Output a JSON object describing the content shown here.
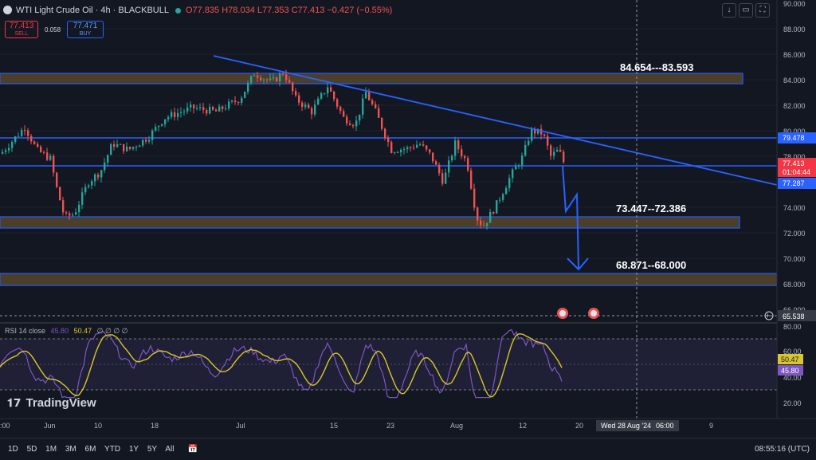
{
  "header": {
    "symbol_title": "WTI Light Crude Oil · 4h · BLACKBULL",
    "open": "O77.835",
    "high": "H78.034",
    "low": "L77.353",
    "close": "C77.413",
    "change": "−0.427 (−0.55%)",
    "sell_price": "77.413",
    "sell_label": "SELL",
    "spread": "0.058",
    "buy_price": "77.471",
    "buy_label": "BUY"
  },
  "price_axis": {
    "ticks": [
      "90.000",
      "88.000",
      "86.000",
      "84.000",
      "82.000",
      "80.000",
      "78.000",
      "74.000",
      "72.000",
      "70.000",
      "68.000",
      "66.000"
    ],
    "current_price": "77.413",
    "countdown": "01:04:44",
    "level_upper": "79.478",
    "level_lower": "77.287",
    "crosshair_price": "65.538"
  },
  "zones": [
    {
      "label": "84.654---83.593",
      "low": 83.593,
      "high": 84.654
    },
    {
      "label": "73.447--72.386",
      "low": 72.386,
      "high": 73.447
    },
    {
      "label": "68.871--68.000",
      "low": 68.0,
      "high": 68.871
    }
  ],
  "rsi": {
    "title": "RSI 14 close",
    "rsi_value": "45.80",
    "ma_value": "50.47",
    "extra": "∅ ∅ ∅ ∅",
    "ticks": [
      "80.00",
      "60.00",
      "40.00",
      "20.00"
    ],
    "badge_ma": "50.47",
    "badge_rsi": "45.80"
  },
  "time_axis": {
    "labels": [
      ":00",
      "Jun",
      "10",
      "18",
      "Jul",
      "15",
      "23",
      "Aug",
      "12",
      "20",
      "9"
    ],
    "crosshair_date": "Wed 28 Aug '24",
    "crosshair_time": "06:00"
  },
  "logo": "TradingView",
  "bottom_bar": {
    "timeframes": [
      "1D",
      "5D",
      "1M",
      "3M",
      "6M",
      "YTD",
      "1Y",
      "5Y",
      "All"
    ],
    "clock": "08:55:16 (UTC)"
  },
  "colors": {
    "background": "#131722",
    "bull": "#26a69a",
    "bear": "#ef5350",
    "trendline": "#2962ff",
    "zone_fill": "#5b4a2b",
    "zone_border": "#2962ff",
    "rsi_line": "#7e57c2",
    "rsi_ma": "#d9c52d"
  }
}
